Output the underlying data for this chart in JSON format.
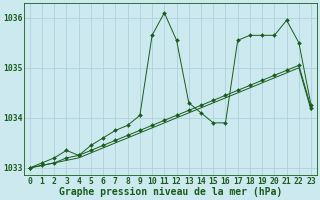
{
  "background_color": "#cce9f0",
  "grid_color": "#aacdd8",
  "line_color": "#1a5c1a",
  "marker_color": "#1a5c1a",
  "title": "Graphe pression niveau de la mer (hPa)",
  "xlabel_ticks": [
    0,
    1,
    2,
    3,
    4,
    5,
    6,
    7,
    8,
    9,
    10,
    11,
    12,
    13,
    14,
    15,
    16,
    17,
    18,
    19,
    20,
    21,
    22,
    23
  ],
  "ylim": [
    1032.85,
    1036.3
  ],
  "yticks": [
    1033,
    1034,
    1035,
    1036
  ],
  "ytick_labels": [
    "1033",
    "1034",
    "1035",
    "1036"
  ],
  "series1": [
    1033.0,
    1033.1,
    1033.2,
    1033.35,
    1033.25,
    1033.45,
    1033.6,
    1033.75,
    1033.85,
    1034.05,
    1035.65,
    1036.1,
    1035.55,
    1034.3,
    1034.1,
    1033.9,
    1033.9,
    1035.55,
    1035.65,
    1035.65,
    1035.65,
    1035.95,
    1035.5,
    1034.25
  ],
  "series2": [
    1033.0,
    1033.05,
    1033.1,
    1033.2,
    1033.25,
    1033.35,
    1033.45,
    1033.55,
    1033.65,
    1033.75,
    1033.85,
    1033.95,
    1034.05,
    1034.15,
    1034.25,
    1034.35,
    1034.45,
    1034.55,
    1034.65,
    1034.75,
    1034.85,
    1034.95,
    1035.05,
    1034.2
  ],
  "series3": [
    1033.0,
    1033.05,
    1033.1,
    1033.15,
    1033.2,
    1033.3,
    1033.4,
    1033.5,
    1033.6,
    1033.7,
    1033.8,
    1033.9,
    1034.0,
    1034.1,
    1034.2,
    1034.3,
    1034.4,
    1034.5,
    1034.6,
    1034.7,
    1034.8,
    1034.9,
    1035.0,
    1034.15
  ],
  "title_fontsize": 7.0,
  "tick_fontsize": 5.8
}
